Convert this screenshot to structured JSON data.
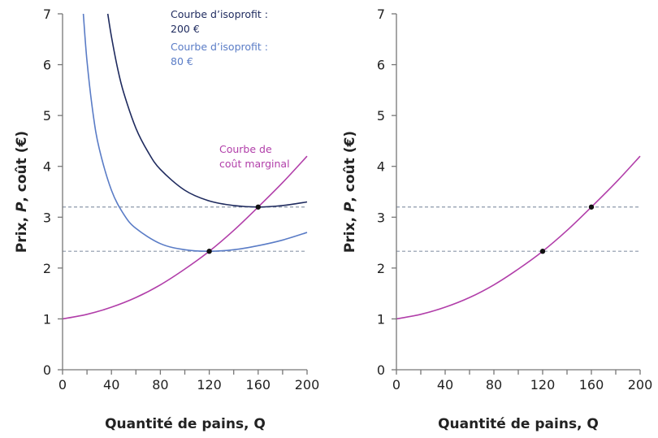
{
  "chart_data": [
    {
      "type": "line",
      "xlabel": "Quantité de pains, Q",
      "ylabel_parts": [
        "Prix, ",
        "P",
        ", coût (€)"
      ],
      "xlim": [
        0,
        200
      ],
      "ylim": [
        0,
        7
      ],
      "xticks": [
        0,
        40,
        80,
        120,
        160,
        200
      ],
      "xminor_step": 20,
      "yticks": [
        0,
        1,
        2,
        3,
        4,
        5,
        6,
        7
      ],
      "grid": false,
      "series": [
        {
          "name": "Courbe de coût marginal",
          "label_lines": [
            "Courbe de",
            "coût marginal"
          ],
          "color": "#b13ea9",
          "x": [
            0,
            20,
            40,
            60,
            80,
            100,
            120,
            140,
            160,
            180,
            200
          ],
          "y": [
            1.0,
            1.09,
            1.23,
            1.42,
            1.67,
            1.98,
            2.33,
            2.74,
            3.2,
            3.68,
            4.2
          ]
        },
        {
          "name": "Courbe d’isoprofit : 200 €",
          "label_lines": [
            "Courbe d’isoprofit :",
            "200 €"
          ],
          "color": "#1e2a5e",
          "x": [
            37,
            40,
            45,
            50,
            60,
            70,
            80,
            100,
            120,
            140,
            160,
            180,
            200
          ],
          "y": [
            7.0,
            6.55,
            5.93,
            5.45,
            4.75,
            4.28,
            3.94,
            3.53,
            3.32,
            3.23,
            3.2,
            3.23,
            3.3
          ]
        },
        {
          "name": "Courbe d’isoprofit : 80 €",
          "label_lines": [
            "Courbe d’isoprofit :",
            "80 €"
          ],
          "color": "#5a7cc6",
          "x": [
            17,
            20,
            25,
            30,
            40,
            50,
            60,
            80,
            100,
            120,
            140,
            160,
            180,
            200
          ],
          "y": [
            7.0,
            6.07,
            5.03,
            4.35,
            3.53,
            3.06,
            2.78,
            2.48,
            2.36,
            2.33,
            2.36,
            2.44,
            2.55,
            2.7
          ]
        }
      ],
      "reference_lines_y": [
        3.2,
        2.33
      ],
      "points": [
        {
          "x": 120,
          "y": 2.33
        },
        {
          "x": 160,
          "y": 3.2
        }
      ]
    },
    {
      "type": "line",
      "xlabel": "Quantité de pains, Q",
      "ylabel_parts": [
        "Prix, ",
        "P",
        ", coût (€)"
      ],
      "xlim": [
        0,
        200
      ],
      "ylim": [
        0,
        7
      ],
      "xticks": [
        0,
        40,
        80,
        120,
        160,
        200
      ],
      "xminor_step": 20,
      "yticks": [
        0,
        1,
        2,
        3,
        4,
        5,
        6,
        7
      ],
      "grid": false,
      "series": [
        {
          "color": "#b13ea9",
          "x": [
            0,
            20,
            40,
            60,
            80,
            100,
            120,
            140,
            160,
            180,
            200
          ],
          "y": [
            1.0,
            1.09,
            1.23,
            1.42,
            1.67,
            1.98,
            2.33,
            2.74,
            3.2,
            3.68,
            4.2
          ]
        }
      ],
      "reference_lines_y": [
        3.2,
        2.33
      ],
      "points": [
        {
          "x": 120,
          "y": 2.33
        },
        {
          "x": 160,
          "y": 3.2
        }
      ]
    }
  ],
  "colors": {
    "axis": "#777777",
    "reference": "#8c97aa",
    "point": "#111111"
  }
}
